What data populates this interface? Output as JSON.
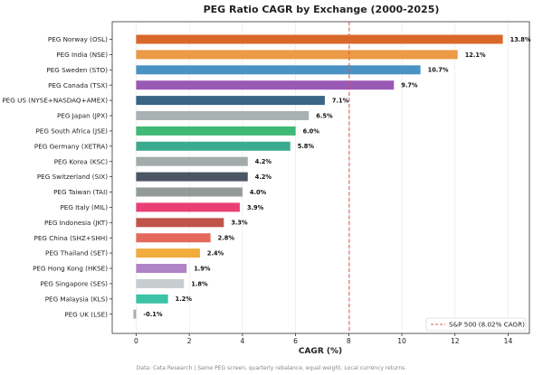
{
  "chart_data": {
    "type": "bar",
    "orientation": "horizontal",
    "title": "PEG Ratio CAGR by Exchange (2000-2025)",
    "xlabel": "CAGR (%)",
    "ylabel": "",
    "xlim": [
      -0.9,
      14.8
    ],
    "xticks": [
      0,
      2,
      4,
      6,
      8,
      10,
      12,
      14
    ],
    "grid": "vertical",
    "categories": [
      "PEG Norway (OSL)",
      "PEG India (NSE)",
      "PEG Sweden (STO)",
      "PEG Canada (TSX)",
      "PEG US (NYSE+NASDAQ+AMEX)",
      "PEG Japan (JPX)",
      "PEG South Africa (JSE)",
      "PEG Germany (XETRA)",
      "PEG Korea (KSC)",
      "PEG Switzerland (SIX)",
      "PEG Taiwan (TAI)",
      "PEG Italy (MIL)",
      "PEG Indonesia (JKT)",
      "PEG China (SHZ+SHH)",
      "PEG Thailand (SET)",
      "PEG Hong Kong (HKSE)",
      "PEG Singapore (SES)",
      "PEG Malaysia (KLS)",
      "PEG UK (LSE)"
    ],
    "values": [
      13.8,
      12.1,
      10.7,
      9.7,
      7.1,
      6.5,
      6.0,
      5.8,
      4.2,
      4.2,
      4.0,
      3.9,
      3.3,
      2.8,
      2.4,
      1.9,
      1.8,
      1.2,
      -0.1
    ],
    "value_labels": [
      "13.8%",
      "12.1%",
      "10.7%",
      "9.7%",
      "7.1%",
      "6.5%",
      "6.0%",
      "5.8%",
      "4.2%",
      "4.2%",
      "4.0%",
      "3.9%",
      "3.3%",
      "2.8%",
      "2.4%",
      "1.9%",
      "1.8%",
      "1.2%",
      "-0.1%"
    ],
    "colors": [
      "#d9692a",
      "#ec9a45",
      "#4a92c4",
      "#9b59b6",
      "#3a6584",
      "#a8b2b3",
      "#3fba76",
      "#3bab90",
      "#a2abab",
      "#4b5564",
      "#929b99",
      "#ea3f74",
      "#c0534a",
      "#e4685c",
      "#f1ac3c",
      "#b083c6",
      "#c6cdcf",
      "#3cc2a7",
      "#a6afb0"
    ],
    "reference_line": {
      "value": 8.02,
      "label": "S&P 500 (8.02% CAGR)",
      "color": "#e05555"
    },
    "legend_position": "bottom-right",
    "footer": "Data: Ceta Research | Same PEG screen, quarterly rebalance, equal weight. Local currency returns."
  }
}
